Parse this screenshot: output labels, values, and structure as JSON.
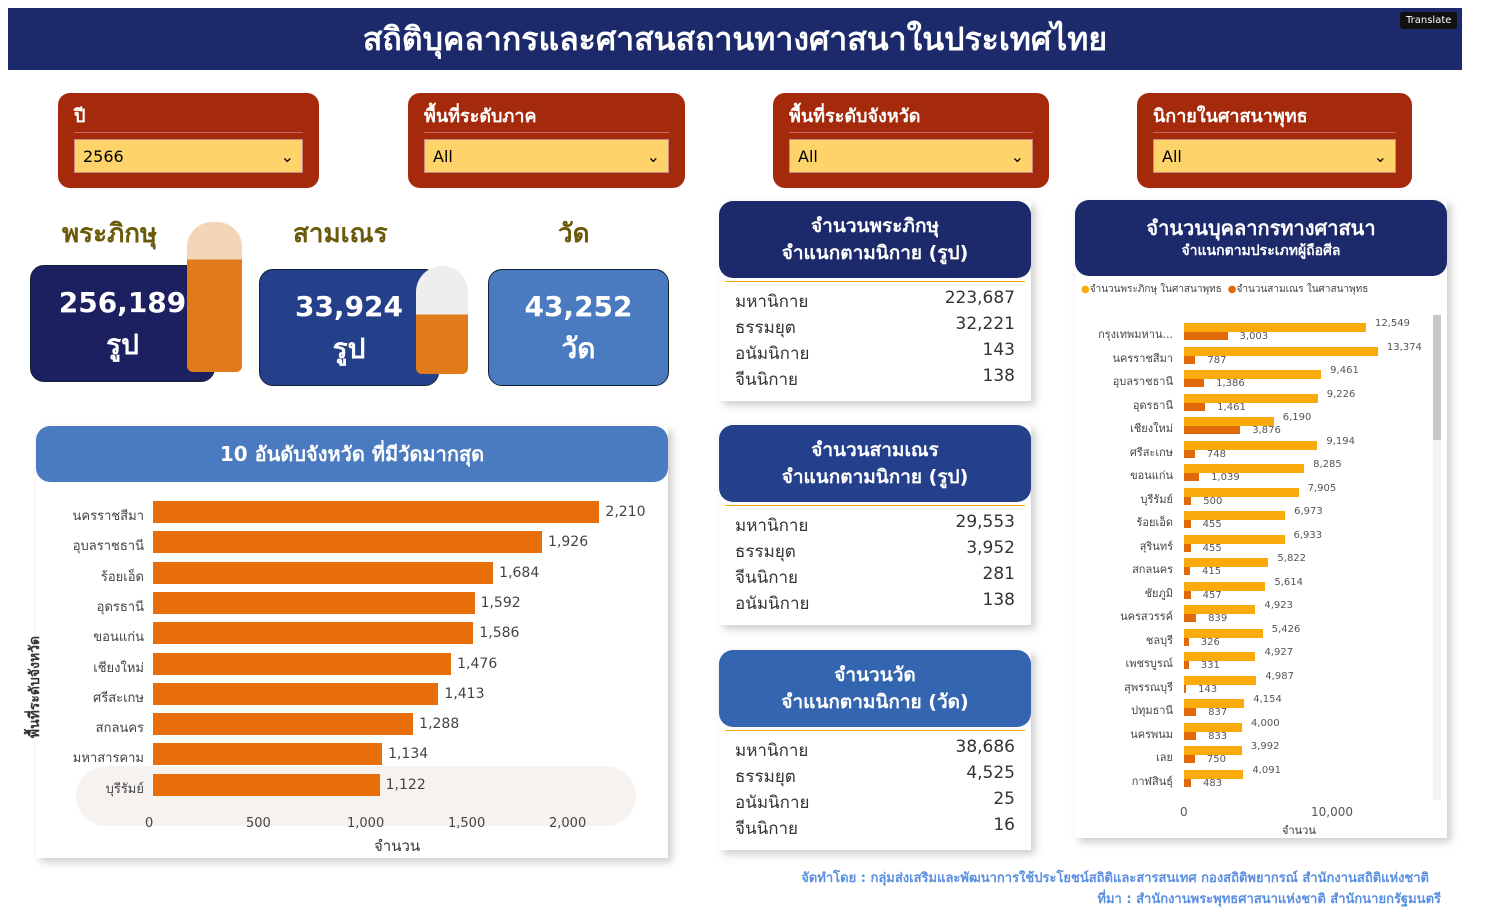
{
  "title": "สถิติบุคลากรและศาสนสถานทางศาสนาในประเทศไทย",
  "translate": "Translate",
  "filters": [
    {
      "label": "ปี",
      "value": "2566"
    },
    {
      "label": "พื้นที่ระดับภาค",
      "value": "All"
    },
    {
      "label": "พื้นที่ระดับจังหวัด",
      "value": "All"
    },
    {
      "label": "นิกายในศาสนาพุทธ",
      "value": "All"
    }
  ],
  "kpis": [
    {
      "label": "พระภิกษุ",
      "value": "256,189",
      "unit": "รูป"
    },
    {
      "label": "สามเณร",
      "value": "33,924",
      "unit": "รูป"
    },
    {
      "label": "วัด",
      "value": "43,252",
      "unit": "วัด"
    }
  ],
  "monks_table": {
    "title1": "จำนวนพระภิกษุ",
    "title2": "จำแนกตามนิกาย (รูป)",
    "rows": [
      [
        "มหานิกาย",
        "223,687"
      ],
      [
        "ธรรมยุต",
        "32,221"
      ],
      [
        "อนัมนิกาย",
        "143"
      ],
      [
        "จีนนิกาย",
        "138"
      ]
    ]
  },
  "novice_table": {
    "title1": "จำนวนสามเณร",
    "title2": "จำแนกตามนิกาย (รูป)",
    "rows": [
      [
        "มหานิกาย",
        "29,553"
      ],
      [
        "ธรรมยุต",
        "3,952"
      ],
      [
        "จีนนิกาย",
        "281"
      ],
      [
        "อนัมนิกาย",
        "138"
      ]
    ]
  },
  "temple_table": {
    "title1": "จำนวนวัด",
    "title2": "จำแนกตามนิกาย (วัด)",
    "rows": [
      [
        "มหานิกาย",
        "38,686"
      ],
      [
        "ธรรมยุต",
        "4,525"
      ],
      [
        "อนัมนิกาย",
        "25"
      ],
      [
        "จีนนิกาย",
        "16"
      ]
    ]
  },
  "footer": {
    "line1": "จัดทำโดย : กลุ่มส่งเสริมและพัฒนาการใช้ประโยชน์สถิติและสารสนเทศ กองสถิติพยากรณ์ สำนักงานสถิติแห่งชาติ",
    "line2": "ที่มา : สำนักงานพระพุทธศาสนาแห่งชาติ สำนักนายกรัฐมนตรี"
  },
  "chart_data": [
    {
      "type": "bar",
      "title": "10 อันดับจังหวัด ที่มีวัดมากสุด",
      "xlabel": "จำนวน",
      "ylabel": "พื้นที่ระดับจังหวัด",
      "xlim": [
        0,
        2300
      ],
      "xticks": [
        "0",
        "500",
        "1,000",
        "1,500",
        "2,000"
      ],
      "categories": [
        "นครราชสีมา",
        "อุบลราชธานี",
        "ร้อยเอ็ด",
        "อุดรธานี",
        "ขอนแก่น",
        "เชียงใหม่",
        "ศรีสะเกษ",
        "สกลนคร",
        "มหาสารคาม",
        "บุรีรัมย์"
      ],
      "values": [
        2210,
        1926,
        1684,
        1592,
        1586,
        1476,
        1413,
        1288,
        1134,
        1122
      ],
      "labels": [
        "2,210",
        "1,926",
        "1,684",
        "1,592",
        "1,586",
        "1,476",
        "1,413",
        "1,288",
        "1,134",
        "1,122"
      ],
      "color": "#e86e0a"
    },
    {
      "type": "bar",
      "title": "จำนวนบุคลากรทางศาสนา",
      "subtitle": "จำแนกตามประเภทผู้ถือศีล",
      "xlabel": "จำนวน",
      "xticks": [
        "0",
        "10,000"
      ],
      "legend": "top-left",
      "categories": [
        "กรุงเทพมหาน...",
        "นครราชสีมา",
        "อุบลราชธานี",
        "อุดรธานี",
        "เชียงใหม่",
        "ศรีสะเกษ",
        "ขอนแก่น",
        "บุรีรัมย์",
        "ร้อยเอ็ด",
        "สุรินทร์",
        "สกลนคร",
        "ชัยภูมิ",
        "นครสวรรค์",
        "ชลบุรี",
        "เพชรบูรณ์",
        "สุพรรณบุรี",
        "ปทุมธานี",
        "นครพนม",
        "เลย",
        "กาฬสินธุ์"
      ],
      "series": [
        {
          "name": "จำนวนพระภิกษุ ในศาสนาพุทธ",
          "color": "#fbaa0c",
          "values": [
            12549,
            13374,
            9461,
            9226,
            6190,
            9194,
            8285,
            7905,
            6973,
            6933,
            5822,
            5614,
            4923,
            5426,
            4927,
            4987,
            4154,
            4000,
            3992,
            4091
          ]
        },
        {
          "name": "จำนวนสามเณร ในศาสนาพุทธ",
          "color": "#e06a0a",
          "values": [
            3003,
            787,
            1386,
            1461,
            3876,
            748,
            1039,
            500,
            455,
            455,
            415,
            457,
            839,
            326,
            331,
            143,
            837,
            833,
            750,
            483
          ]
        }
      ]
    }
  ]
}
